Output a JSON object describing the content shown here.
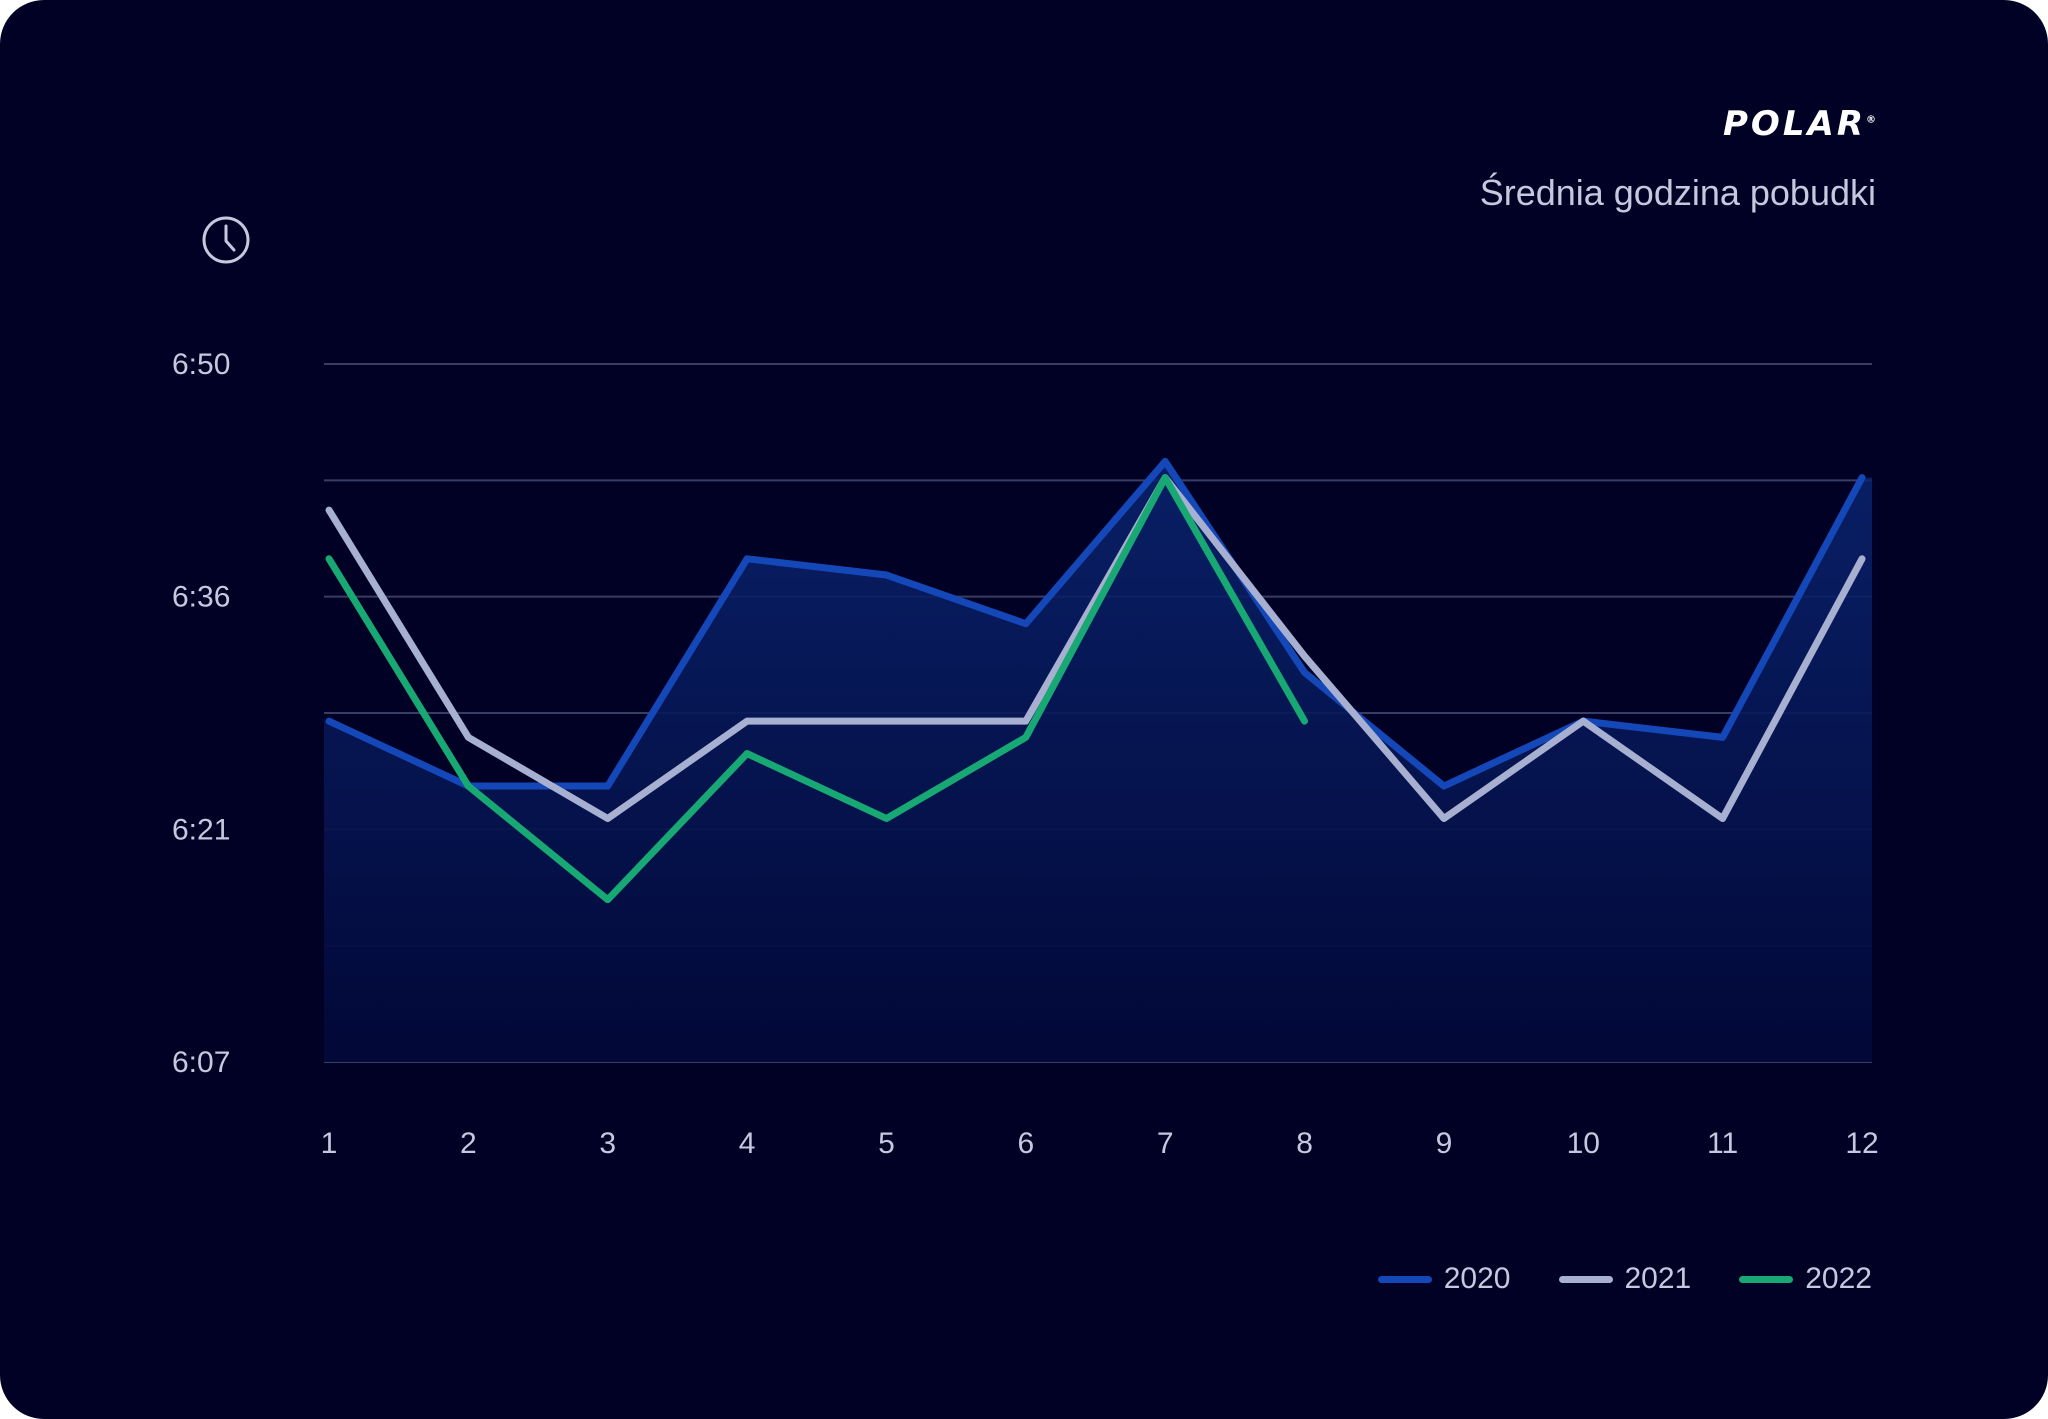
{
  "brand": {
    "logo_text": "POLAR",
    "logo_mark": "®"
  },
  "icon": {
    "name": "clock-icon"
  },
  "chart_data": {
    "type": "line",
    "title": "Średnia godzina pobudki",
    "xlabel": "",
    "ylabel": "",
    "categories": [
      "1",
      "2",
      "3",
      "4",
      "5",
      "6",
      "7",
      "8",
      "9",
      "10",
      "11",
      "12"
    ],
    "y_tick_labels": [
      "6:07",
      "6:21",
      "6:36",
      "6:50"
    ],
    "ylim_minutes": [
      367,
      410
    ],
    "grid": true,
    "legend_position": "bottom-right",
    "series": [
      {
        "name": "2020",
        "color": "#1448b8",
        "fill": true,
        "values_minutes": [
          388,
          384,
          384,
          398,
          397,
          394,
          404,
          391,
          384,
          388,
          387,
          403
        ]
      },
      {
        "name": "2021",
        "color": "#a8b0d2",
        "fill": false,
        "values_minutes": [
          401,
          387,
          382,
          388,
          388,
          388,
          403,
          392,
          382,
          388,
          382,
          398
        ]
      },
      {
        "name": "2022",
        "color": "#17a873",
        "fill": false,
        "values_minutes": [
          398,
          384,
          377,
          386,
          382,
          387,
          403,
          388
        ]
      }
    ]
  }
}
